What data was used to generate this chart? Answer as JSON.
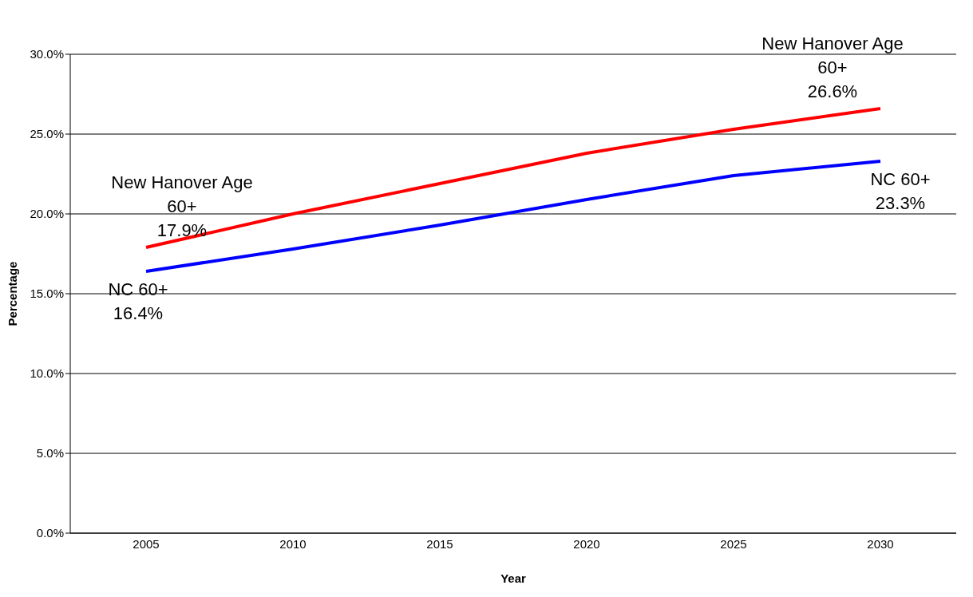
{
  "chart_data": {
    "type": "line",
    "xlabel": "Year",
    "ylabel": "Percentage",
    "categories": [
      "2005",
      "2010",
      "2015",
      "2020",
      "2025",
      "2030"
    ],
    "series": [
      {
        "name": "New Hanover Age 60+",
        "color": "#ff0000",
        "values": [
          17.9,
          20.0,
          21.9,
          23.8,
          25.3,
          26.6
        ],
        "value_labels": [
          "17.9%",
          null,
          null,
          null,
          null,
          "26.6%"
        ]
      },
      {
        "name": "NC 60+",
        "color": "#0000ff",
        "values": [
          16.4,
          17.8,
          19.3,
          20.9,
          22.4,
          23.3
        ],
        "value_labels": [
          "16.4%",
          null,
          null,
          null,
          null,
          "23.3%"
        ]
      }
    ],
    "ylim": [
      0,
      30
    ],
    "yticks": [
      {
        "value": 0,
        "label": "0.0%"
      },
      {
        "value": 5,
        "label": "5.0%"
      },
      {
        "value": 10,
        "label": "10.0%"
      },
      {
        "value": 15,
        "label": "15.0%"
      },
      {
        "value": 20,
        "label": "20.0%"
      },
      {
        "value": 25,
        "label": "25.0%"
      },
      {
        "value": 30,
        "label": "30.0%"
      }
    ],
    "grid": "y",
    "legend": false,
    "marker": "none",
    "line_style": "solid"
  }
}
